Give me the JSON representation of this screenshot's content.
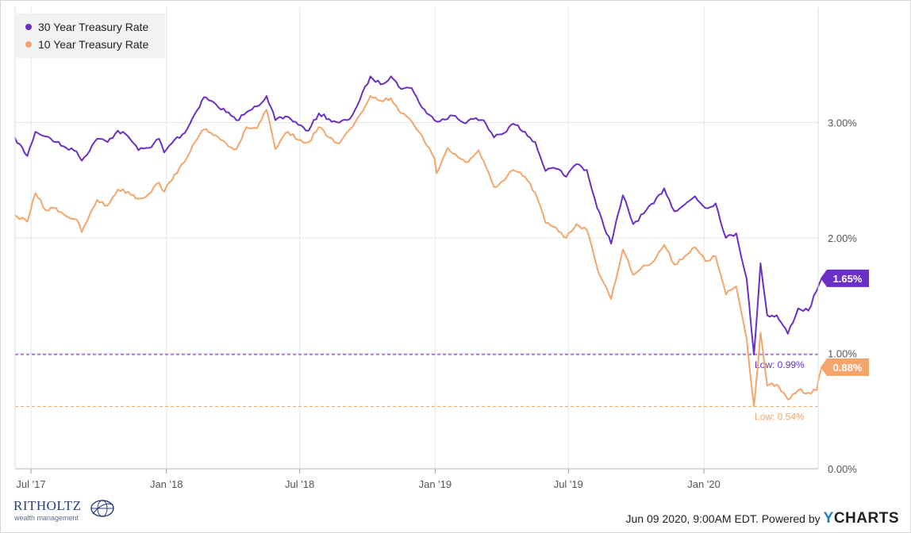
{
  "chart_data": {
    "type": "line",
    "legend": {
      "position": "top-left"
    },
    "x_ticks": [
      "Jul '17",
      "Jan '18",
      "Jul '18",
      "Jan '19",
      "Jul '19",
      "Jan '20"
    ],
    "y_ticks": [
      "0.00%",
      "1.00%",
      "2.00%",
      "3.00%"
    ],
    "ylim": [
      0,
      4
    ],
    "grid": true,
    "series": [
      {
        "name": "30 Year Treasury Rate",
        "color": "#6a2fc4",
        "last_label": "1.65%",
        "low_label": "Low: 0.99%",
        "low_value": 0.99,
        "points": [
          [
            "2017-06-09",
            2.87
          ],
          [
            "2017-06-26",
            2.71
          ],
          [
            "2017-07-07",
            2.92
          ],
          [
            "2017-07-21",
            2.88
          ],
          [
            "2017-08-04",
            2.83
          ],
          [
            "2017-08-18",
            2.78
          ],
          [
            "2017-09-01",
            2.75
          ],
          [
            "2017-09-08",
            2.67
          ],
          [
            "2017-09-29",
            2.86
          ],
          [
            "2017-10-13",
            2.83
          ],
          [
            "2017-10-27",
            2.93
          ],
          [
            "2017-11-10",
            2.88
          ],
          [
            "2017-11-24",
            2.76
          ],
          [
            "2017-12-08",
            2.78
          ],
          [
            "2017-12-22",
            2.86
          ],
          [
            "2017-12-29",
            2.74
          ],
          [
            "2018-01-12",
            2.85
          ],
          [
            "2018-01-26",
            2.91
          ],
          [
            "2018-02-09",
            3.08
          ],
          [
            "2018-02-21",
            3.22
          ],
          [
            "2018-03-09",
            3.16
          ],
          [
            "2018-03-23",
            3.09
          ],
          [
            "2018-04-06",
            3.02
          ],
          [
            "2018-04-20",
            3.09
          ],
          [
            "2018-05-04",
            3.14
          ],
          [
            "2018-05-17",
            3.23
          ],
          [
            "2018-05-29",
            3.02
          ],
          [
            "2018-06-15",
            3.05
          ],
          [
            "2018-06-29",
            2.98
          ],
          [
            "2018-07-13",
            2.93
          ],
          [
            "2018-07-27",
            3.08
          ],
          [
            "2018-08-10",
            3.03
          ],
          [
            "2018-08-24",
            3.0
          ],
          [
            "2018-09-07",
            3.03
          ],
          [
            "2018-09-21",
            3.2
          ],
          [
            "2018-10-05",
            3.4
          ],
          [
            "2018-10-19",
            3.33
          ],
          [
            "2018-11-02",
            3.4
          ],
          [
            "2018-11-16",
            3.29
          ],
          [
            "2018-11-30",
            3.3
          ],
          [
            "2018-12-14",
            3.13
          ],
          [
            "2018-12-31",
            3.02
          ],
          [
            "2019-01-11",
            3.03
          ],
          [
            "2019-01-25",
            3.06
          ],
          [
            "2019-02-08",
            3.0
          ],
          [
            "2019-02-22",
            3.03
          ],
          [
            "2019-03-08",
            3.02
          ],
          [
            "2019-03-22",
            2.87
          ],
          [
            "2019-04-05",
            2.91
          ],
          [
            "2019-04-17",
            2.99
          ],
          [
            "2019-05-03",
            2.92
          ],
          [
            "2019-05-17",
            2.83
          ],
          [
            "2019-05-31",
            2.58
          ],
          [
            "2019-06-14",
            2.6
          ],
          [
            "2019-06-28",
            2.53
          ],
          [
            "2019-07-12",
            2.64
          ],
          [
            "2019-07-26",
            2.59
          ],
          [
            "2019-08-09",
            2.26
          ],
          [
            "2019-08-28",
            1.95
          ],
          [
            "2019-09-13",
            2.37
          ],
          [
            "2019-09-27",
            2.12
          ],
          [
            "2019-10-11",
            2.21
          ],
          [
            "2019-10-25",
            2.3
          ],
          [
            "2019-11-08",
            2.43
          ],
          [
            "2019-11-22",
            2.23
          ],
          [
            "2019-12-06",
            2.29
          ],
          [
            "2019-12-20",
            2.36
          ],
          [
            "2020-01-03",
            2.26
          ],
          [
            "2020-01-17",
            2.3
          ],
          [
            "2020-01-31",
            2.0
          ],
          [
            "2020-02-14",
            2.04
          ],
          [
            "2020-02-28",
            1.65
          ],
          [
            "2020-03-09",
            0.99
          ],
          [
            "2020-03-18",
            1.78
          ],
          [
            "2020-03-27",
            1.33
          ],
          [
            "2020-04-09",
            1.33
          ],
          [
            "2020-04-24",
            1.17
          ],
          [
            "2020-05-08",
            1.39
          ],
          [
            "2020-05-22",
            1.37
          ],
          [
            "2020-06-02",
            1.54
          ],
          [
            "2020-06-09",
            1.65
          ]
        ]
      },
      {
        "name": "10 Year Treasury Rate",
        "color": "#f4a56b",
        "last_label": "0.88%",
        "low_label": "Low: 0.54%",
        "low_value": 0.54,
        "points": [
          [
            "2017-06-09",
            2.2
          ],
          [
            "2017-06-26",
            2.14
          ],
          [
            "2017-07-07",
            2.39
          ],
          [
            "2017-07-21",
            2.24
          ],
          [
            "2017-08-04",
            2.26
          ],
          [
            "2017-08-18",
            2.19
          ],
          [
            "2017-09-01",
            2.16
          ],
          [
            "2017-09-08",
            2.05
          ],
          [
            "2017-09-29",
            2.33
          ],
          [
            "2017-10-13",
            2.28
          ],
          [
            "2017-10-27",
            2.42
          ],
          [
            "2017-11-10",
            2.4
          ],
          [
            "2017-11-24",
            2.34
          ],
          [
            "2017-12-08",
            2.38
          ],
          [
            "2017-12-22",
            2.48
          ],
          [
            "2017-12-29",
            2.4
          ],
          [
            "2018-01-12",
            2.55
          ],
          [
            "2018-01-26",
            2.66
          ],
          [
            "2018-02-09",
            2.83
          ],
          [
            "2018-02-21",
            2.94
          ],
          [
            "2018-03-09",
            2.89
          ],
          [
            "2018-03-23",
            2.82
          ],
          [
            "2018-04-06",
            2.77
          ],
          [
            "2018-04-20",
            2.96
          ],
          [
            "2018-05-04",
            2.95
          ],
          [
            "2018-05-17",
            3.11
          ],
          [
            "2018-05-29",
            2.77
          ],
          [
            "2018-06-15",
            2.92
          ],
          [
            "2018-06-29",
            2.85
          ],
          [
            "2018-07-13",
            2.83
          ],
          [
            "2018-07-27",
            2.96
          ],
          [
            "2018-08-10",
            2.87
          ],
          [
            "2018-08-24",
            2.82
          ],
          [
            "2018-09-07",
            2.94
          ],
          [
            "2018-09-21",
            3.07
          ],
          [
            "2018-10-05",
            3.23
          ],
          [
            "2018-10-19",
            3.19
          ],
          [
            "2018-11-02",
            3.21
          ],
          [
            "2018-11-16",
            3.08
          ],
          [
            "2018-11-30",
            3.01
          ],
          [
            "2018-12-14",
            2.89
          ],
          [
            "2018-12-31",
            2.69
          ],
          [
            "2019-01-03",
            2.56
          ],
          [
            "2019-01-18",
            2.78
          ],
          [
            "2019-02-01",
            2.7
          ],
          [
            "2019-02-15",
            2.66
          ],
          [
            "2019-03-01",
            2.76
          ],
          [
            "2019-03-22",
            2.44
          ],
          [
            "2019-04-05",
            2.5
          ],
          [
            "2019-04-17",
            2.59
          ],
          [
            "2019-05-03",
            2.53
          ],
          [
            "2019-05-17",
            2.39
          ],
          [
            "2019-05-31",
            2.13
          ],
          [
            "2019-06-14",
            2.09
          ],
          [
            "2019-06-28",
            2.0
          ],
          [
            "2019-07-12",
            2.12
          ],
          [
            "2019-07-26",
            2.07
          ],
          [
            "2019-08-09",
            1.74
          ],
          [
            "2019-08-28",
            1.47
          ],
          [
            "2019-09-13",
            1.9
          ],
          [
            "2019-09-27",
            1.68
          ],
          [
            "2019-10-11",
            1.76
          ],
          [
            "2019-10-25",
            1.8
          ],
          [
            "2019-11-08",
            1.94
          ],
          [
            "2019-11-22",
            1.77
          ],
          [
            "2019-12-06",
            1.84
          ],
          [
            "2019-12-20",
            1.92
          ],
          [
            "2020-01-03",
            1.8
          ],
          [
            "2020-01-17",
            1.84
          ],
          [
            "2020-01-31",
            1.51
          ],
          [
            "2020-02-14",
            1.58
          ],
          [
            "2020-02-28",
            1.13
          ],
          [
            "2020-03-09",
            0.54
          ],
          [
            "2020-03-18",
            1.18
          ],
          [
            "2020-03-27",
            0.72
          ],
          [
            "2020-04-09",
            0.73
          ],
          [
            "2020-04-24",
            0.6
          ],
          [
            "2020-05-08",
            0.68
          ],
          [
            "2020-05-22",
            0.66
          ],
          [
            "2020-06-02",
            0.68
          ],
          [
            "2020-06-09",
            0.88
          ]
        ]
      }
    ]
  },
  "footer": {
    "brand_name": "RITHOLTZ",
    "brand_sub": "wealth management",
    "timestamp": "Jun 09 2020, 9:00AM EDT. Powered by",
    "powered_brand_y": "Y",
    "powered_brand_rest": "CHARTS"
  }
}
